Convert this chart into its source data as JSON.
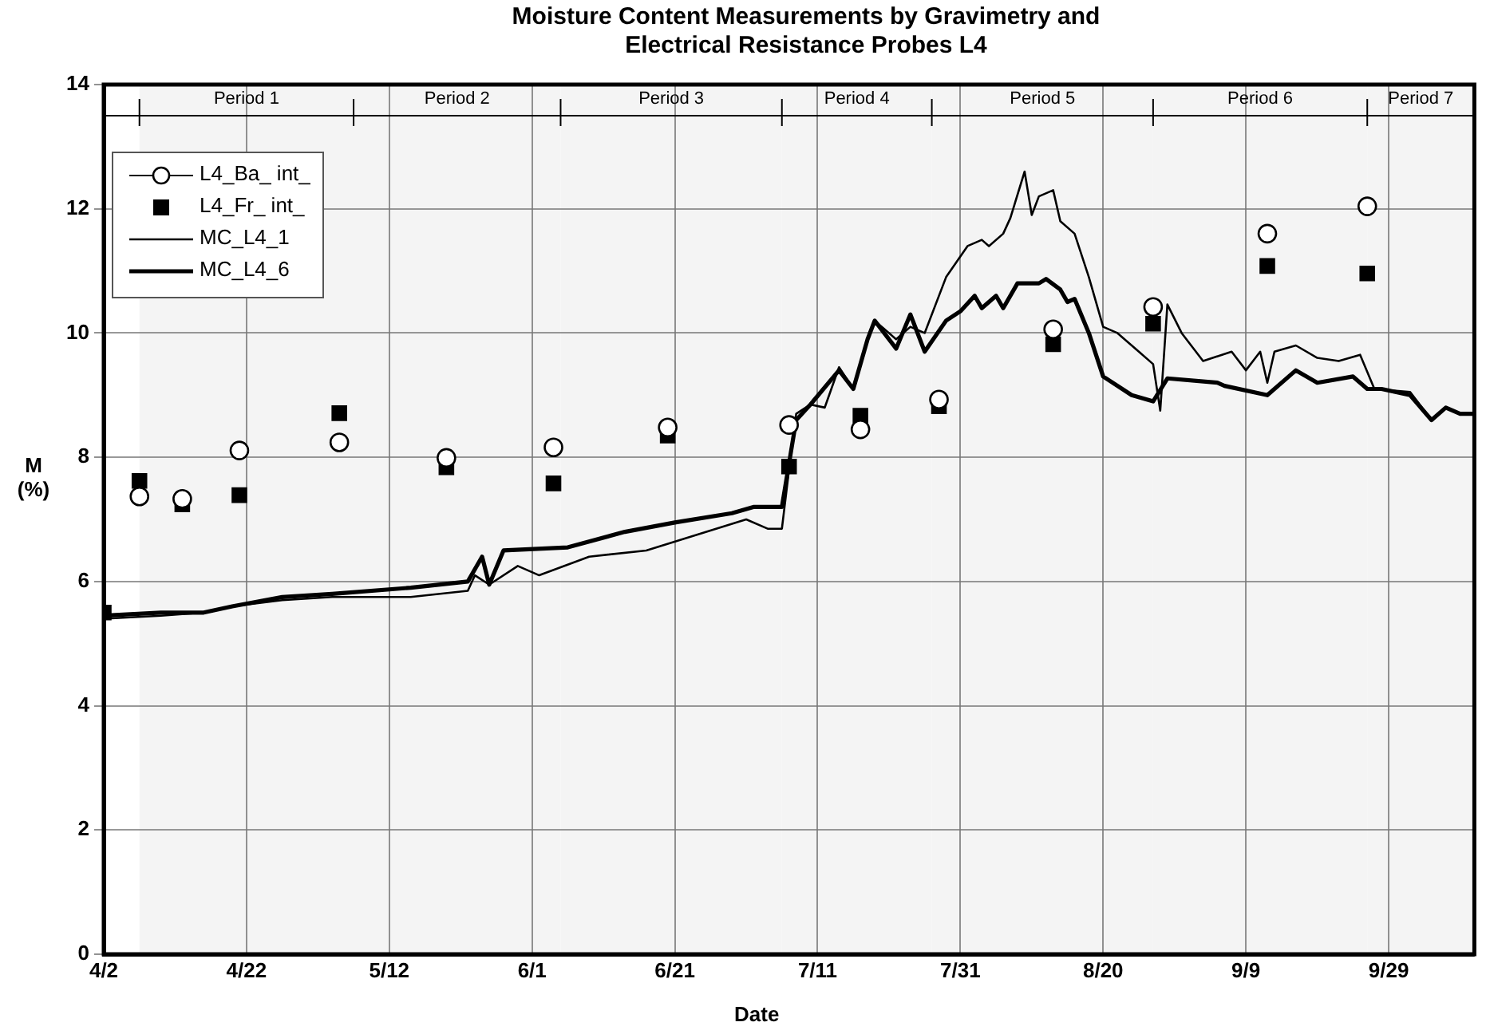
{
  "chart_data": {
    "type": "line",
    "title": "Moisture Content Measurements by Gravimetry and Electrical Resistance Probes L4",
    "xlabel": "Date",
    "ylabel": "M (%)",
    "xlim": [
      "--04-02",
      "--10-11"
    ],
    "xticks": [
      {
        "value": "--04-02",
        "label": "4/2"
      },
      {
        "value": "--04-22",
        "label": "4/22"
      },
      {
        "value": "--05-12",
        "label": "5/12"
      },
      {
        "value": "--06-01",
        "label": "6/1"
      },
      {
        "value": "--06-21",
        "label": "6/21"
      },
      {
        "value": "--07-11",
        "label": "7/11"
      },
      {
        "value": "--07-31",
        "label": "7/31"
      },
      {
        "value": "--08-20",
        "label": "8/20"
      },
      {
        "value": "--09-09",
        "label": "9/9"
      },
      {
        "value": "--09-29",
        "label": "9/29"
      }
    ],
    "ylim": [
      0,
      14
    ],
    "yticks": [
      0,
      2,
      4,
      6,
      8,
      10,
      12,
      14
    ],
    "grid": true,
    "legend": "top left",
    "bands": [
      {
        "axis": "x",
        "from": "--04-07",
        "to": "--05-07",
        "label": "Period 1",
        "color": "#f4f4f4"
      },
      {
        "axis": "x",
        "from": "--05-07",
        "to": "--06-05",
        "label": "Period 2",
        "color": "#f4f4f4"
      },
      {
        "axis": "x",
        "from": "--06-05",
        "to": "--07-06",
        "label": "Period 3",
        "color": "#f4f4f4"
      },
      {
        "axis": "x",
        "from": "--07-06",
        "to": "--07-27",
        "label": "Period 4",
        "color": "#f4f4f4"
      },
      {
        "axis": "x",
        "from": "--07-27",
        "to": "--08-27",
        "label": "Period 5",
        "color": "#f4f4f4"
      },
      {
        "axis": "x",
        "from": "--08-27",
        "to": "--09-26",
        "label": "Period 6",
        "color": "#f4f4f4"
      },
      {
        "axis": "x",
        "from": "--09-26",
        "to": "--10-11",
        "label": "Period 7",
        "color": "#f4f4f4"
      }
    ],
    "ref_lines": [
      {
        "axis": "y",
        "value": 13.5
      }
    ],
    "series": [
      {
        "name": "L4_Ba_ int_",
        "type": "scatter",
        "marker": "circle",
        "color": "#000000",
        "x": [
          "--04-07",
          "--04-13",
          "--04-21",
          "--05-05",
          "--05-20",
          "--06-04",
          "--06-20",
          "--07-07",
          "--07-17",
          "--07-28",
          "--08-13",
          "--08-27",
          "--09-12",
          "--09-26"
        ],
        "values": [
          7.37,
          7.33,
          8.11,
          8.24,
          7.99,
          8.16,
          8.48,
          8.52,
          8.45,
          8.93,
          10.06,
          10.42,
          11.6,
          12.04
        ]
      },
      {
        "name": "L4_Fr_ int_",
        "type": "scatter",
        "marker": "square",
        "color": "#000000",
        "x": [
          "--04-02",
          "--04-07",
          "--04-13",
          "--04-21",
          "--05-05",
          "--05-20",
          "--06-04",
          "--06-20",
          "--07-07",
          "--07-17",
          "--07-28",
          "--08-13",
          "--08-27",
          "--09-12",
          "--09-26"
        ],
        "values": [
          5.5,
          7.62,
          7.24,
          7.39,
          8.71,
          7.84,
          7.58,
          8.35,
          7.85,
          8.67,
          8.82,
          9.82,
          10.15,
          11.08,
          10.96
        ]
      },
      {
        "name": "MC_L4_1",
        "type": "line",
        "marker": "none",
        "color": "#000000",
        "x": [
          "--04-02",
          "--04-10",
          "--04-16",
          "--04-20",
          "--04-27",
          "--05-04",
          "--05-15",
          "--05-23",
          "--05-24",
          "--05-26",
          "--05-30",
          "--06-02",
          "--06-09",
          "--06-17",
          "--06-24",
          "--07-01",
          "--07-04",
          "--07-06",
          "--07-07",
          "--07-08",
          "--07-10",
          "--07-12",
          "--07-14",
          "--07-16",
          "--07-18",
          "--07-19",
          "--07-22",
          "--07-24",
          "--07-26",
          "--07-29",
          "--08-01",
          "--08-03",
          "--08-04",
          "--08-06",
          "--08-07",
          "--08-09",
          "--08-10",
          "--08-11",
          "--08-13",
          "--08-14",
          "--08-16",
          "--08-18",
          "--08-20",
          "--08-22",
          "--08-25",
          "--08-27",
          "--08-28",
          "--08-29",
          "--08-31",
          "--09-03",
          "--09-07",
          "--09-09",
          "--09-11",
          "--09-12",
          "--09-13",
          "--09-16",
          "--09-19",
          "--09-22",
          "--09-25",
          "--09-27",
          "--10-02",
          "--10-05",
          "--10-07",
          "--10-09",
          "--10-11"
        ],
        "values": [
          5.4,
          5.45,
          5.5,
          5.6,
          5.7,
          5.75,
          5.75,
          5.85,
          6.1,
          5.95,
          6.25,
          6.1,
          6.4,
          6.5,
          6.75,
          7.0,
          6.85,
          6.85,
          7.8,
          8.7,
          8.85,
          8.8,
          9.45,
          9.1,
          9.9,
          10.2,
          9.9,
          10.1,
          10.0,
          10.9,
          11.4,
          11.5,
          11.4,
          11.6,
          11.85,
          12.6,
          11.9,
          12.2,
          12.3,
          11.8,
          11.6,
          10.9,
          10.1,
          10.0,
          9.7,
          9.5,
          8.75,
          10.46,
          10.0,
          9.55,
          9.7,
          9.4,
          9.7,
          9.2,
          9.7,
          9.8,
          9.6,
          9.55,
          9.65,
          9.1,
          9.05,
          8.6,
          8.8,
          8.7,
          8.7
        ]
      },
      {
        "name": "MC_L4_6",
        "type": "line",
        "marker": "none",
        "color": "#000000",
        "x": [
          "--04-02",
          "--04-10",
          "--04-16",
          "--04-20",
          "--04-27",
          "--05-04",
          "--05-15",
          "--05-23",
          "--05-25",
          "--05-26",
          "--05-28",
          "--06-06",
          "--06-14",
          "--06-21",
          "--06-29",
          "--07-02",
          "--07-06",
          "--07-07",
          "--07-08",
          "--07-10",
          "--07-14",
          "--07-16",
          "--07-18",
          "--07-19",
          "--07-22",
          "--07-24",
          "--07-26",
          "--07-29",
          "--07-31",
          "--08-02",
          "--08-03",
          "--08-05",
          "--08-06",
          "--08-08",
          "--08-11",
          "--08-12",
          "--08-14",
          "--08-15",
          "--08-16",
          "--08-18",
          "--08-20",
          "--08-24",
          "--08-27",
          "--08-29",
          "--09-05",
          "--09-06",
          "--09-12",
          "--09-16",
          "--09-19",
          "--09-24",
          "--09-26",
          "--09-28",
          "--10-02",
          "--10-05",
          "--10-07",
          "--10-09",
          "--10-11"
        ],
        "values": [
          5.45,
          5.5,
          5.5,
          5.6,
          5.75,
          5.8,
          5.9,
          6.0,
          6.4,
          5.95,
          6.5,
          6.55,
          6.8,
          6.95,
          7.1,
          7.2,
          7.2,
          7.9,
          8.6,
          8.85,
          9.4,
          9.1,
          9.9,
          10.2,
          9.75,
          10.3,
          9.7,
          10.2,
          10.35,
          10.6,
          10.4,
          10.6,
          10.4,
          10.8,
          10.8,
          10.87,
          10.7,
          10.5,
          10.55,
          10.0,
          9.3,
          9.0,
          8.9,
          9.27,
          9.2,
          9.15,
          9.0,
          9.4,
          9.2,
          9.3,
          9.1,
          9.1,
          9.0,
          8.6,
          8.8,
          8.7,
          8.7
        ]
      }
    ]
  }
}
